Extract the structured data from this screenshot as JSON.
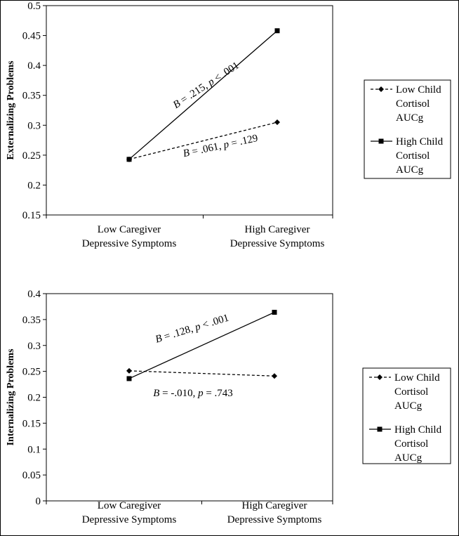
{
  "chart_data": [
    {
      "type": "line",
      "ylabel": "Externalizing Problems",
      "categories": [
        "Low Caregiver Depressive Symptoms",
        "High Caregiver Depressive Symptoms"
      ],
      "category_lines": [
        [
          "Low Caregiver",
          "Depressive Symptoms"
        ],
        [
          "High Caregiver",
          "Depressive Symptoms"
        ]
      ],
      "ylim": [
        0.15,
        0.5
      ],
      "yticks": [
        "0.15",
        "0.2",
        "0.25",
        "0.3",
        "0.35",
        "0.4",
        "0.45",
        "0.5"
      ],
      "ytick_values": [
        0.15,
        0.2,
        0.25,
        0.3,
        0.35,
        0.4,
        0.45,
        0.5
      ],
      "grid": false,
      "legend_position": "right",
      "series": [
        {
          "name": "Low Child Cortisol AUCg",
          "name_lines": [
            "Low Child",
            "Cortisol",
            "AUCg"
          ],
          "values": [
            0.243,
            0.305
          ],
          "style": "dashed",
          "marker": "diamond"
        },
        {
          "name": "High Child Cortisol AUCg",
          "name_lines": [
            "High Child",
            "Cortisol",
            "AUCg"
          ],
          "values": [
            0.243,
            0.458
          ],
          "style": "solid",
          "marker": "square"
        }
      ],
      "annotations": [
        {
          "b_label": "B",
          "b_value": " = .215, ",
          "p_label": "p",
          "p_value": " < .001",
          "series": 1
        },
        {
          "b_label": "B",
          "b_value": " = .061, ",
          "p_label": "p",
          "p_value": " = .129",
          "series": 0
        }
      ]
    },
    {
      "type": "line",
      "ylabel": "Internalizing Problems",
      "categories": [
        "Low Caregiver Depressive Symptoms",
        "High Caregiver Depressive Symptoms"
      ],
      "category_lines": [
        [
          "Low Caregiver",
          "Depressive Symptoms"
        ],
        [
          "High Caregiver",
          "Depressive Symptoms"
        ]
      ],
      "ylim": [
        0,
        0.4
      ],
      "yticks": [
        "0",
        "0.05",
        "0.1",
        "0.15",
        "0.2",
        "0.25",
        "0.3",
        "0.35",
        "0.4"
      ],
      "ytick_values": [
        0,
        0.05,
        0.1,
        0.15,
        0.2,
        0.25,
        0.3,
        0.35,
        0.4
      ],
      "grid": false,
      "legend_position": "right",
      "series": [
        {
          "name": "Low Child Cortisol AUCg",
          "name_lines": [
            "Low Child",
            "Cortisol",
            "AUCg"
          ],
          "values": [
            0.251,
            0.241
          ],
          "style": "dashed",
          "marker": "diamond"
        },
        {
          "name": "High Child Cortisol AUCg",
          "name_lines": [
            "High Child",
            "Cortisol",
            "AUCg"
          ],
          "values": [
            0.236,
            0.364
          ],
          "style": "solid",
          "marker": "square"
        }
      ],
      "annotations": [
        {
          "b_label": "B",
          "b_value": " = .128, ",
          "p_label": "p",
          "p_value": " < .001",
          "series": 1
        },
        {
          "b_label": "B",
          "b_value": " = -.010, ",
          "p_label": "p",
          "p_value": " = .743",
          "series": 0
        }
      ]
    }
  ]
}
